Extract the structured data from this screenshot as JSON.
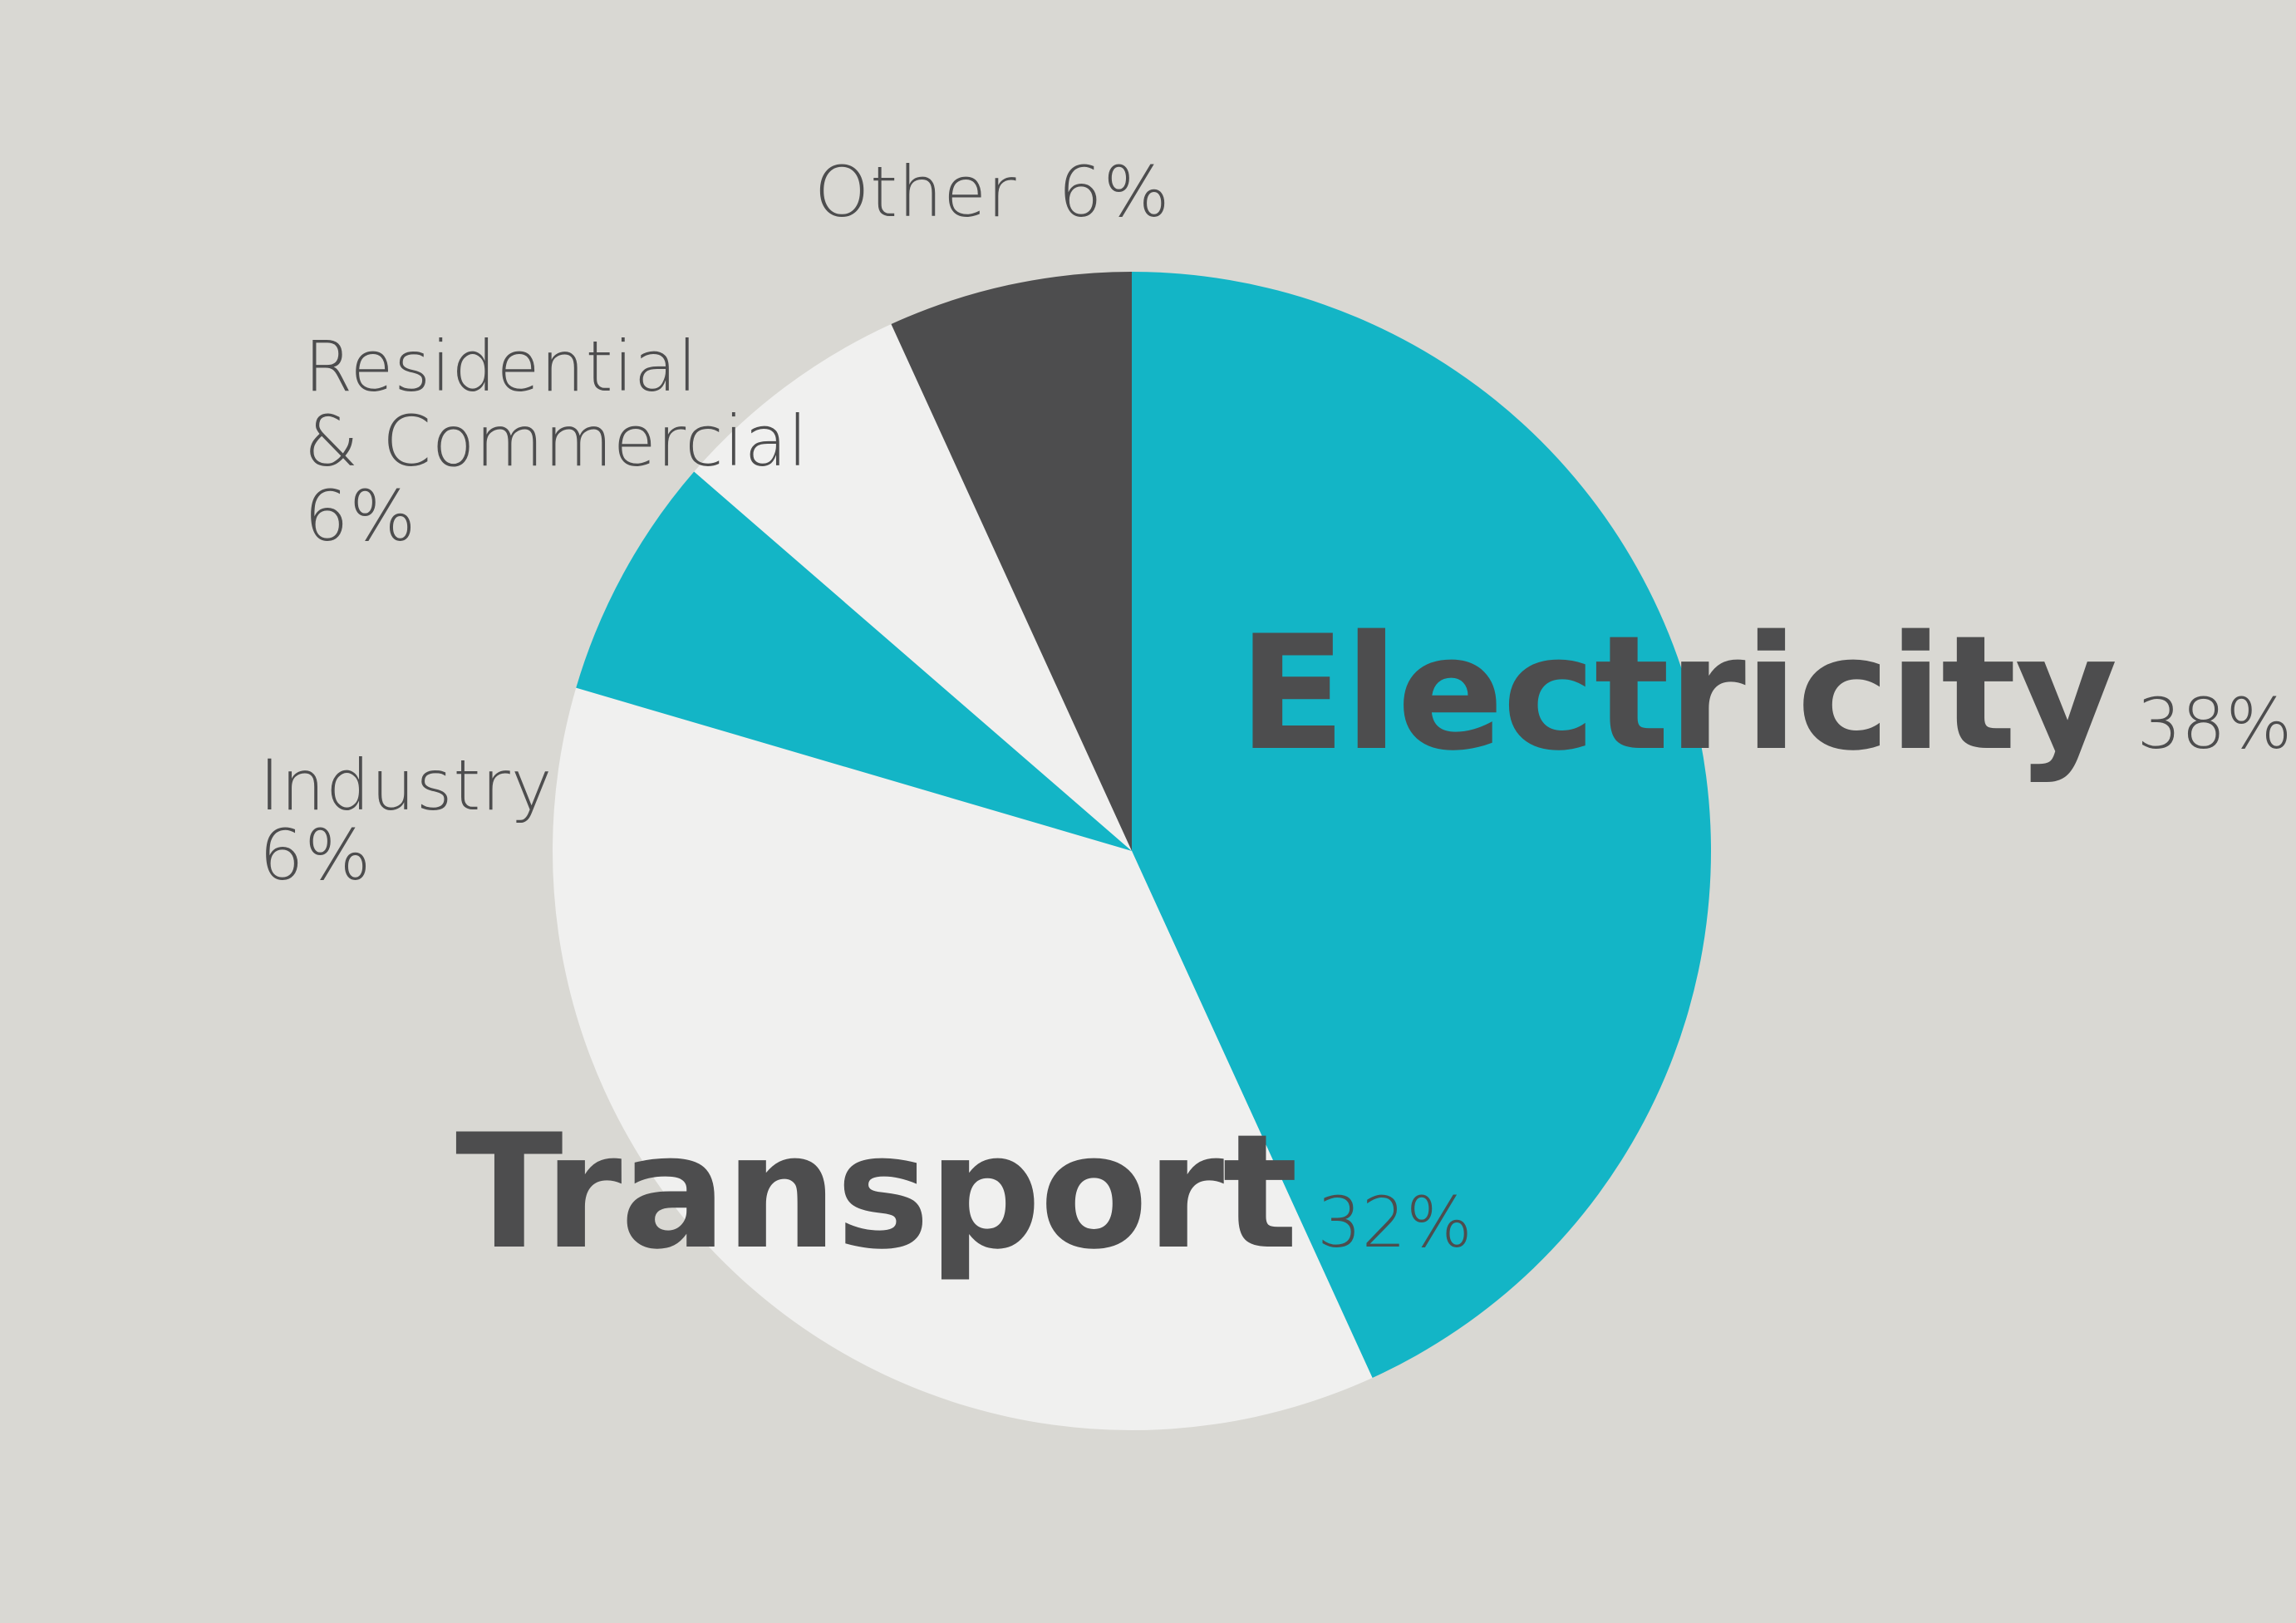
{
  "chart_data": {
    "type": "pie",
    "start_angle_deg": 0,
    "direction": "clockwise",
    "slices": [
      {
        "label": "Electricity",
        "value": 38,
        "value_label": "38%",
        "color": "#13b5c6",
        "emphasis": true
      },
      {
        "label": "Transport",
        "value": 32,
        "value_label": "32%",
        "color": "#f0f0ef",
        "emphasis": true
      },
      {
        "label": "Industry",
        "value": 6,
        "value_label": "6%",
        "color": "#13b5c6",
        "emphasis": false
      },
      {
        "label": "Residential & Commercial",
        "label_lines": [
          "Residential",
          "& Commercial"
        ],
        "value": 6,
        "value_label": "6%",
        "color": "#f0f0ef",
        "emphasis": false
      },
      {
        "label": "Other",
        "value": 6,
        "value_label": "6%",
        "color": "#4d4d4e",
        "emphasis": false
      }
    ]
  },
  "colors": {
    "background": "#d9d8d3",
    "text": "#4d4d4e",
    "accent": "#13b5c6",
    "light": "#f0f0ef",
    "dark": "#4d4d4e"
  }
}
